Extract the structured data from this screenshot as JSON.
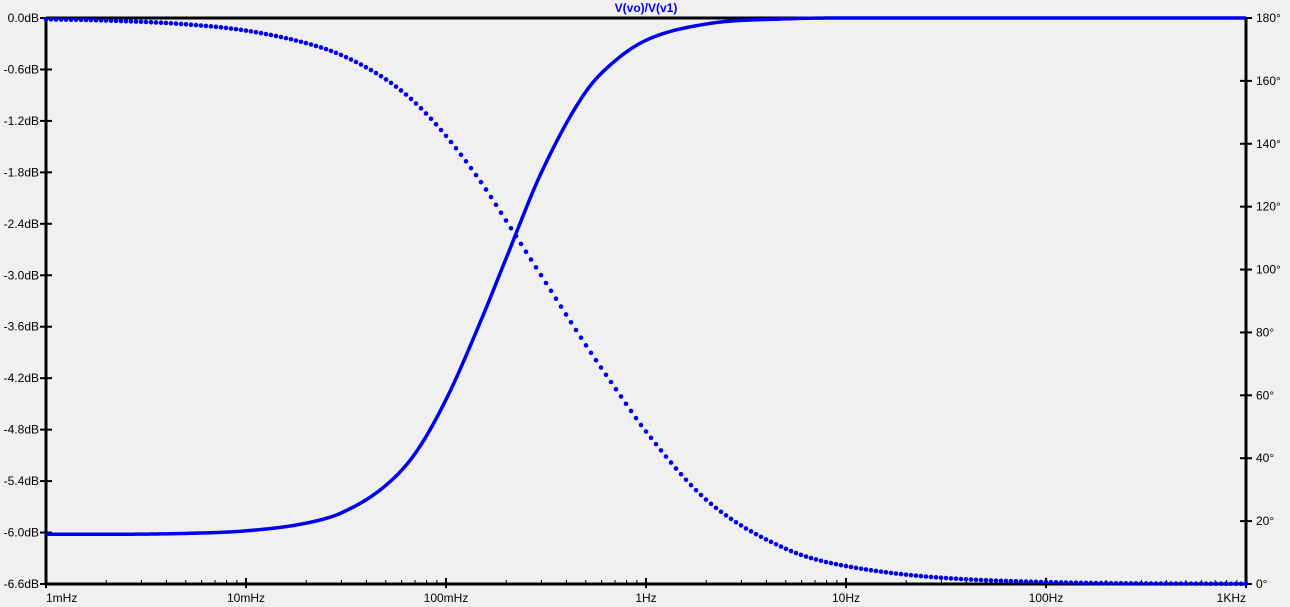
{
  "chart_data": {
    "type": "line",
    "title": "V(vo)/V(v1)",
    "x_scale": "log",
    "xlim": [
      0.001,
      1000
    ],
    "x_ticks": [
      {
        "value": 0.001,
        "label": "1mHz"
      },
      {
        "value": 0.01,
        "label": "10mHz"
      },
      {
        "value": 0.1,
        "label": "100mHz"
      },
      {
        "value": 1,
        "label": "1Hz"
      },
      {
        "value": 10,
        "label": "10Hz"
      },
      {
        "value": 100,
        "label": "100Hz"
      },
      {
        "value": 1000,
        "label": "1KHz"
      }
    ],
    "y_left": {
      "unit": "dB",
      "ylim": [
        -6.6,
        0.0
      ],
      "ticks": [
        "0.0dB",
        "-0.6dB",
        "-1.2dB",
        "-1.8dB",
        "-2.4dB",
        "-3.0dB",
        "-3.6dB",
        "-4.2dB",
        "-4.8dB",
        "-5.4dB",
        "-6.0dB",
        "-6.6dB"
      ],
      "tick_values": [
        0.0,
        -0.6,
        -1.2,
        -1.8,
        -2.4,
        -3.0,
        -3.6,
        -4.2,
        -4.8,
        -5.4,
        -6.0,
        -6.6
      ]
    },
    "y_right": {
      "unit": "degrees",
      "ylim": [
        0,
        180
      ],
      "ticks": [
        "180°",
        "160°",
        "140°",
        "120°",
        "100°",
        "80°",
        "60°",
        "40°",
        "20°",
        "0°"
      ],
      "tick_values": [
        180,
        160,
        140,
        120,
        100,
        80,
        60,
        40,
        20,
        0
      ]
    },
    "series": [
      {
        "style": "solid",
        "axis": "left",
        "color": "#0000ee",
        "x": [
          0.001,
          0.002,
          0.005,
          0.01,
          0.02,
          0.03,
          0.05,
          0.07,
          0.1,
          0.15,
          0.2,
          0.3,
          0.5,
          0.7,
          1,
          2,
          5,
          10,
          100,
          1000
        ],
        "y": [
          -6.02,
          -6.02,
          -6.01,
          -5.98,
          -5.89,
          -5.77,
          -5.45,
          -5.08,
          -4.45,
          -3.52,
          -2.8,
          -1.8,
          -0.86,
          -0.5,
          -0.26,
          -0.07,
          -0.01,
          0.0,
          0.0,
          0.0
        ]
      },
      {
        "style": "dotted",
        "axis": "right",
        "color": "#0000ee",
        "x": [
          0.001,
          0.002,
          0.005,
          0.01,
          0.02,
          0.03,
          0.05,
          0.07,
          0.1,
          0.15,
          0.2,
          0.3,
          0.5,
          0.7,
          1,
          2,
          5,
          10,
          100,
          1000
        ],
        "y": [
          179.6,
          179.2,
          178.0,
          176.0,
          172.0,
          168.2,
          160.5,
          153.1,
          142.5,
          127.7,
          115.5,
          98.0,
          76.0,
          62.4,
          48.5,
          26.8,
          11.2,
          5.7,
          0.6,
          0.06
        ]
      }
    ]
  }
}
